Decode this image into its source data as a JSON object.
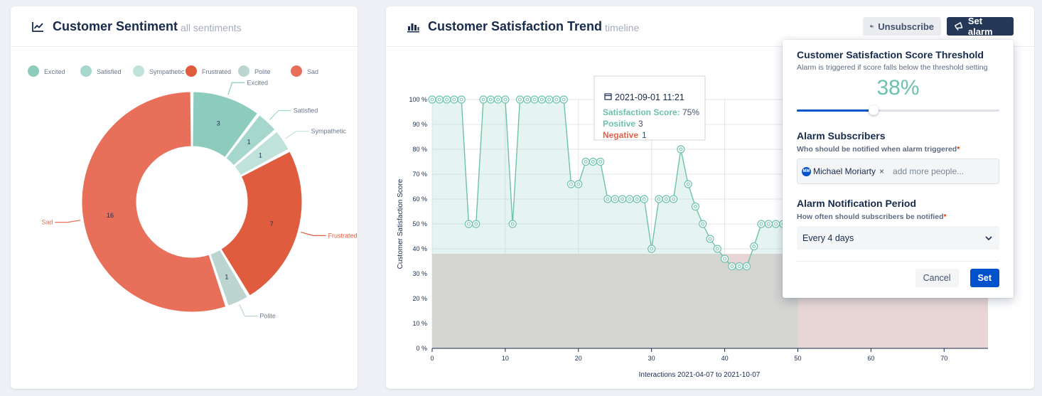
{
  "sentiment": {
    "title": "Customer Sentiment",
    "subtitle": "all sentiments",
    "icon": "line-chart-icon"
  },
  "trend": {
    "title": "Customer Satisfaction Trend",
    "subtitle": "timeline",
    "icon": "bar-chart-icon",
    "unsubscribe_label": "Unsubscribe",
    "set_alarm_label": "Set alarm"
  },
  "tooltip": {
    "date": "2021-09-01 11:21",
    "score_label": "Satisfaction Score:",
    "score_value": "75%",
    "positive_label": "Positive",
    "positive_value": "3",
    "negative_label": "Negative",
    "negative_value": "1"
  },
  "popover": {
    "threshold_title": "Customer Satisfaction Score Threshold",
    "threshold_desc": "Alarm is triggered if score falls below the threshold setting",
    "threshold_value": "38%",
    "threshold_fraction": 0.38,
    "subscribers_title": "Alarm Subscribers",
    "subscribers_label": "Who should be notified when alarm triggered",
    "subscriber_initials": "MM",
    "subscriber_name": "Michael Moriarty",
    "add_more_placeholder": "add more people...",
    "period_title": "Alarm Notification Period",
    "period_label": "How often should subscribers be notified",
    "period_value": "Every 4 days",
    "cancel_label": "Cancel",
    "set_label": "Set",
    "required_mark": "*"
  },
  "colors": {
    "positive": "#8dcbbd",
    "negative": "#e2614a",
    "line": "#6cc2ac",
    "threshold_area": "#e8d6d6",
    "accent": "#0052cc",
    "dark_button": "#253858"
  },
  "chart_data": [
    {
      "type": "pie",
      "variant": "donut",
      "legend_position": "top",
      "categories": [
        "Excited",
        "Satisfied",
        "Sympathetic",
        "Frustrated",
        "Polite",
        "Sad"
      ],
      "values": [
        3,
        1,
        1,
        7,
        1,
        16
      ],
      "colors": [
        "#8dcbbd",
        "#a6d7cc",
        "#bfe2da",
        "#e05c3f",
        "#bdd5d0",
        "#e8705a"
      ]
    },
    {
      "type": "line",
      "fill": "area",
      "xlabel": "Interactions 2021-04-07 to 2021-10-07",
      "ylabel": "Customer Satisfaction Score",
      "xlim": [
        0,
        76
      ],
      "ylim": [
        0,
        100
      ],
      "xticks": [
        0,
        10,
        20,
        30,
        40,
        50,
        60,
        70
      ],
      "yticks": [
        "0 %",
        "10 %",
        "20 %",
        "30 %",
        "40 %",
        "50 %",
        "60 %",
        "70 %",
        "80 %",
        "90 %",
        "100 %"
      ],
      "threshold": 38,
      "grid": true,
      "x": [
        0,
        1,
        2,
        3,
        4,
        5,
        6,
        7,
        8,
        9,
        10,
        11,
        12,
        13,
        14,
        15,
        16,
        17,
        18,
        19,
        20,
        21,
        22,
        23,
        24,
        25,
        26,
        27,
        28,
        29,
        30,
        31,
        32,
        33,
        34,
        35,
        36,
        37,
        38,
        39,
        40,
        41,
        42,
        43,
        44,
        45,
        46,
        47,
        48,
        49,
        50
      ],
      "y": [
        100,
        100,
        100,
        100,
        100,
        50,
        50,
        100,
        100,
        100,
        100,
        50,
        100,
        100,
        100,
        100,
        100,
        100,
        100,
        66,
        66,
        75,
        75,
        75,
        60,
        60,
        60,
        60,
        60,
        60,
        40,
        60,
        60,
        60,
        80,
        66,
        57,
        50,
        44,
        40,
        36,
        33,
        33,
        33,
        41,
        50,
        50,
        50,
        50,
        50,
        50
      ]
    }
  ]
}
